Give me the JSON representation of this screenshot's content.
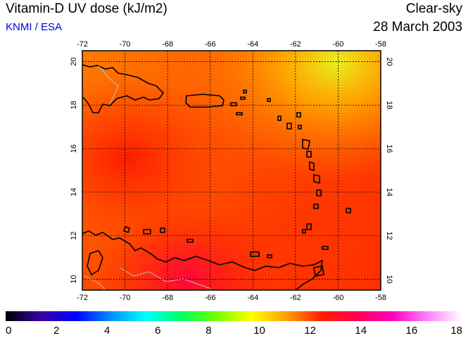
{
  "header": {
    "title": "Vitamin-D UV dose (kJ/m2)",
    "source": "KNMI / ESA",
    "condition": "Clear-sky",
    "date": "28 March 2003"
  },
  "map": {
    "lon_ticks": [
      "-72",
      "-70",
      "-68",
      "-66",
      "-64",
      "-62",
      "-60",
      "-58"
    ],
    "lat_ticks": [
      "20",
      "18",
      "16",
      "14",
      "12",
      "10"
    ],
    "lon_range": [
      -72,
      -58
    ],
    "lat_range": [
      9.5,
      20.5
    ],
    "grid": true,
    "coastline_color": "#000000",
    "border_color": "#c0c0c0"
  },
  "colorbar": {
    "labels": [
      "0",
      "2",
      "4",
      "6",
      "8",
      "10",
      "12",
      "14",
      "16",
      "18"
    ],
    "range": [
      0,
      18
    ],
    "colors": [
      "#000000",
      "#3a00a0",
      "#0000ff",
      "#0090ff",
      "#00ffff",
      "#00ff60",
      "#70ff00",
      "#ffff00",
      "#ffa000",
      "#ff2000",
      "#ff0050",
      "#ff00c0",
      "#ff80ff",
      "#ffffff"
    ]
  }
}
